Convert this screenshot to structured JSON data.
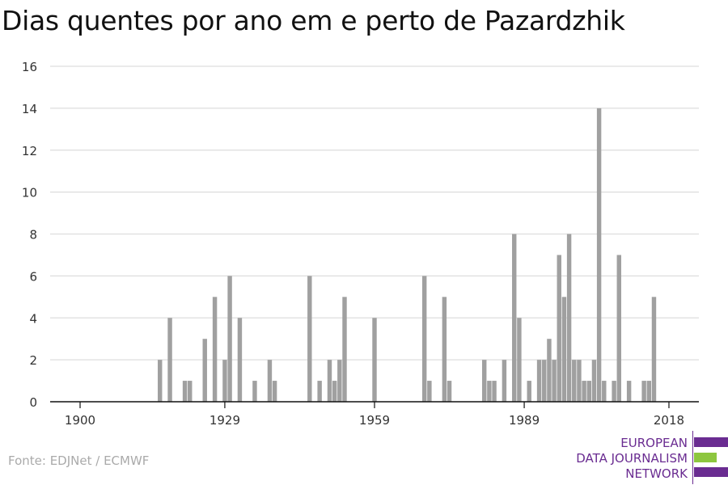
{
  "title": "Dias quentes por ano em e perto de Pazardzhik",
  "source": "Fonte: EDJNet / ECMWF",
  "logo": {
    "line1": "EUROPEAN",
    "line2": "DATA JOURNALISM",
    "line3": "NETWORK"
  },
  "colors": {
    "bar": "#a0a0a0",
    "grid": "#dddddd",
    "axis": "#111111",
    "logo_purple": "#6a2c91",
    "logo_green": "#8dc63f"
  },
  "chart_data": {
    "type": "bar",
    "title": "Dias quentes por ano em e perto de Pazardzhik",
    "xlabel": "",
    "ylabel": "",
    "ylim": [
      0,
      16
    ],
    "xlim": [
      1894,
      2024
    ],
    "y_ticks": [
      0,
      2,
      4,
      6,
      8,
      10,
      12,
      14,
      16
    ],
    "x_ticks": [
      1900,
      1929,
      1959,
      1989,
      2018
    ],
    "grid": true,
    "x": [
      1916,
      1918,
      1921,
      1922,
      1925,
      1927,
      1929,
      1930,
      1932,
      1935,
      1938,
      1939,
      1946,
      1948,
      1950,
      1951,
      1952,
      1953,
      1959,
      1969,
      1970,
      1973,
      1974,
      1981,
      1982,
      1983,
      1985,
      1987,
      1988,
      1990,
      1992,
      1993,
      1994,
      1995,
      1996,
      1997,
      1998,
      1999,
      2000,
      2001,
      2002,
      2003,
      2004,
      2005,
      2007,
      2008,
      2010,
      2013,
      2014,
      2015
    ],
    "values": [
      2,
      4,
      1,
      1,
      3,
      5,
      2,
      6,
      4,
      1,
      2,
      1,
      6,
      1,
      2,
      1,
      2,
      5,
      4,
      6,
      1,
      5,
      1,
      2,
      1,
      1,
      2,
      8,
      4,
      1,
      2,
      2,
      3,
      2,
      7,
      5,
      8,
      2,
      2,
      1,
      1,
      2,
      14,
      1,
      1,
      7,
      1,
      1,
      1,
      5
    ]
  }
}
